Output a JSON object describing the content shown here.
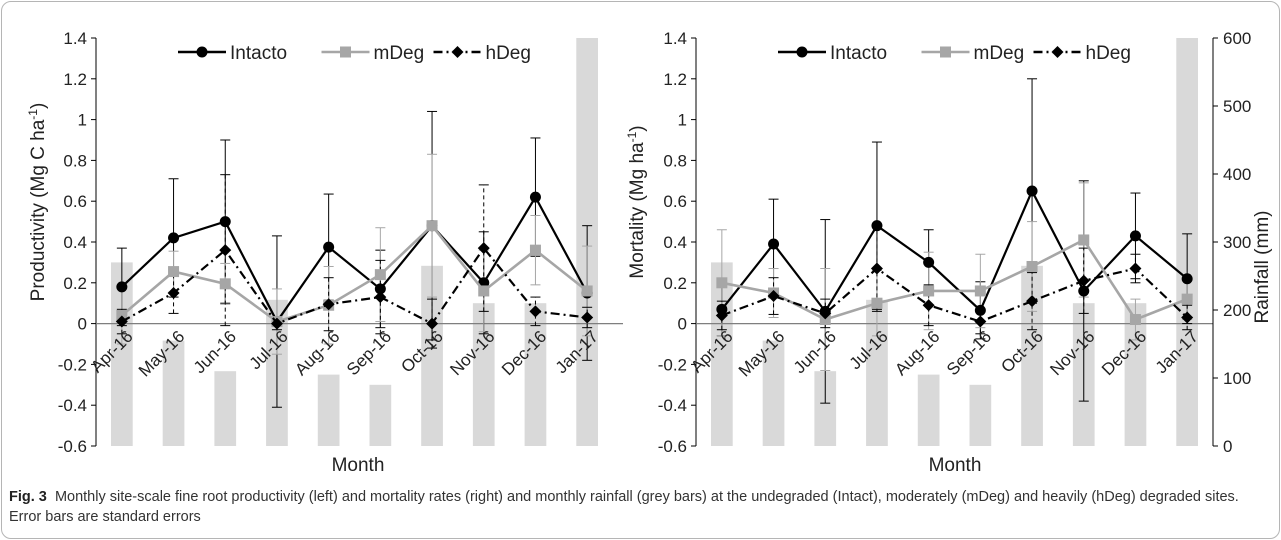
{
  "caption": {
    "label": "Fig. 3",
    "text": "Monthly site-scale fine root productivity (left) and mortality rates (right) and monthly rainfall (grey bars) at the undegraded (Intact), moderately (mDeg) and heavily (hDeg) degraded sites. Error bars are standard errors"
  },
  "chart_data": [
    {
      "type": "line",
      "panel": "left",
      "categories": [
        "Apr-16",
        "May-16",
        "Jun-16",
        "Jul-16",
        "Aug-16",
        "Sep-16",
        "Oct-16",
        "Nov-16",
        "Dec-16",
        "Jan-17"
      ],
      "xlabel": "Month",
      "ylabel": "Productivity (Mg C ha",
      "ylabel_sup": "-1",
      "ylabel_end": ")",
      "ylim": [
        -0.6,
        1.4
      ],
      "yticks": [
        -0.6,
        -0.4,
        -0.2,
        0,
        0.2,
        0.4,
        0.6,
        0.8,
        1,
        1.2,
        1.4
      ],
      "ytick_labels": [
        "-0.6",
        "-0.4",
        "-0.2",
        "0",
        "0.2",
        "0.4",
        "0.6",
        "0.8",
        "1",
        "1.2",
        "1.4"
      ],
      "legend_position": "top",
      "rainfall_bars": [
        270,
        155,
        110,
        215,
        105,
        90,
        265,
        210,
        210,
        600
      ],
      "series": [
        {
          "name": "Intacto",
          "color": "#000000",
          "marker": "circle",
          "dash": "none",
          "values": [
            0.18,
            0.42,
            0.5,
            0.01,
            0.375,
            0.17,
            0.48,
            0.2,
            0.62,
            0.15
          ],
          "errors": [
            0.19,
            0.29,
            0.4,
            0.42,
            0.26,
            0.19,
            0.56,
            0.25,
            0.29,
            0.33
          ]
        },
        {
          "name": "mDeg",
          "color": "#a6a6a6",
          "marker": "square",
          "dash": "none",
          "values": [
            0.04,
            0.255,
            0.195,
            0.01,
            0.09,
            0.24,
            0.48,
            0.16,
            0.36,
            0.16
          ],
          "errors": [
            0.14,
            0.1,
            0.1,
            0.16,
            0.19,
            0.23,
            0.35,
            0.2,
            0.17,
            0.22
          ]
        },
        {
          "name": "hDeg",
          "color": "#000000",
          "marker": "diamond",
          "dash": "dashdot",
          "values": [
            0.01,
            0.15,
            0.36,
            0.0,
            0.095,
            0.13,
            0.0,
            0.37,
            0.06,
            0.03
          ],
          "errors": [
            0.06,
            0.1,
            0.37,
            0.03,
            0.13,
            0.18,
            0.12,
            0.31,
            0.07,
            0.05
          ]
        }
      ]
    },
    {
      "type": "line",
      "panel": "right",
      "categories": [
        "Apr-16",
        "May-16",
        "Jun-16",
        "Jul-16",
        "Aug-16",
        "Sep-16",
        "Oct-16",
        "Nov-16",
        "Dec-16",
        "Jan-17"
      ],
      "xlabel": "Month",
      "ylabel": "Mortality (Mg ha",
      "ylabel_sup": "-1",
      "ylabel_end": ")",
      "ylim": [
        -0.6,
        1.4
      ],
      "yticks": [
        -0.6,
        -0.4,
        -0.2,
        0,
        0.2,
        0.4,
        0.6,
        0.8,
        1,
        1.2,
        1.4
      ],
      "ytick_labels": [
        "-0.6",
        "-0.4",
        "-0.2",
        "0",
        "0.2",
        "0.4",
        "0.6",
        "0.8",
        "1",
        "1.2",
        "1.4"
      ],
      "y2label": "Rainfall (mm)",
      "y2lim": [
        0,
        600
      ],
      "y2ticks": [
        0,
        100,
        200,
        300,
        400,
        500,
        600
      ],
      "y2tick_labels": [
        "0",
        "100",
        "200",
        "300",
        "400",
        "500",
        "600"
      ],
      "legend_position": "top",
      "rainfall_bars": [
        270,
        155,
        110,
        215,
        105,
        90,
        265,
        210,
        210,
        600
      ],
      "series": [
        {
          "name": "Intacto",
          "color": "#000000",
          "marker": "circle",
          "dash": "none",
          "values": [
            0.07,
            0.39,
            0.06,
            0.48,
            0.3,
            0.065,
            0.65,
            0.16,
            0.43,
            0.22
          ],
          "errors": [
            0.13,
            0.22,
            0.45,
            0.41,
            0.16,
            0.14,
            0.55,
            0.54,
            0.21,
            0.22
          ]
        },
        {
          "name": "mDeg",
          "color": "#a6a6a6",
          "marker": "square",
          "dash": "none",
          "values": [
            0.2,
            0.15,
            0.02,
            0.1,
            0.16,
            0.16,
            0.28,
            0.41,
            0.02,
            0.12
          ],
          "errors": [
            0.26,
            0.12,
            0.25,
            0.16,
            0.19,
            0.18,
            0.22,
            0.28,
            0.1,
            0.1
          ]
        },
        {
          "name": "hDeg",
          "color": "#000000",
          "marker": "diamond",
          "dash": "dashdot",
          "values": [
            0.04,
            0.135,
            0.05,
            0.27,
            0.09,
            0.01,
            0.11,
            0.21,
            0.27,
            0.03
          ],
          "errors": [
            0.07,
            0.09,
            0.07,
            0.21,
            0.1,
            0.06,
            0.14,
            0.16,
            0.07,
            0.06
          ]
        }
      ]
    }
  ]
}
